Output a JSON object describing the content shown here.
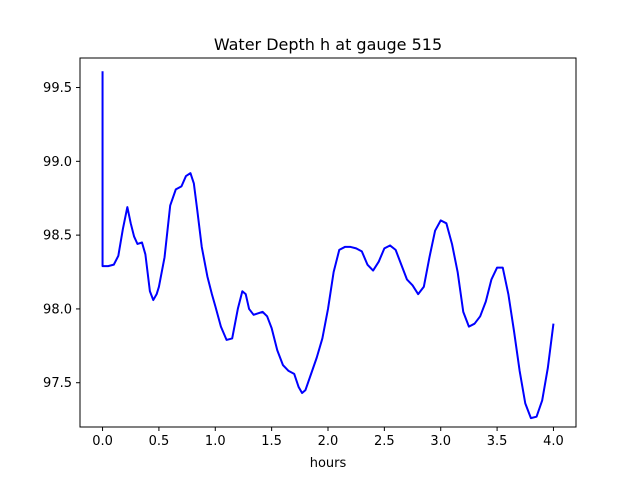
{
  "chart_data": {
    "type": "line",
    "title": "Water Depth h at gauge 515",
    "xlabel": "hours",
    "ylabel": "",
    "xlim": [
      -0.2,
      4.2
    ],
    "ylim": [
      97.2,
      99.7
    ],
    "grid": false,
    "x_ticks": [
      0.0,
      0.5,
      1.0,
      1.5,
      2.0,
      2.5,
      3.0,
      3.5,
      4.0
    ],
    "x_tick_labels": [
      "0.0",
      "0.5",
      "1.0",
      "1.5",
      "2.0",
      "2.5",
      "3.0",
      "3.5",
      "4.0"
    ],
    "y_ticks": [
      97.5,
      98.0,
      98.5,
      99.0,
      99.5
    ],
    "y_tick_labels": [
      "97.5",
      "98.0",
      "98.5",
      "99.0",
      "99.5"
    ],
    "series": [
      {
        "name": "",
        "color": "#0000ff",
        "x": [
          0.0,
          0.0,
          0.05,
          0.1,
          0.14,
          0.18,
          0.22,
          0.25,
          0.28,
          0.31,
          0.35,
          0.38,
          0.42,
          0.45,
          0.48,
          0.5,
          0.55,
          0.6,
          0.65,
          0.7,
          0.74,
          0.78,
          0.81,
          0.84,
          0.88,
          0.93,
          0.97,
          1.0,
          1.05,
          1.1,
          1.15,
          1.2,
          1.24,
          1.27,
          1.3,
          1.34,
          1.38,
          1.42,
          1.46,
          1.5,
          1.55,
          1.6,
          1.65,
          1.7,
          1.74,
          1.77,
          1.8,
          1.85,
          1.9,
          1.95,
          2.0,
          2.05,
          2.1,
          2.15,
          2.2,
          2.25,
          2.3,
          2.35,
          2.4,
          2.45,
          2.5,
          2.55,
          2.6,
          2.65,
          2.7,
          2.75,
          2.8,
          2.85,
          2.9,
          2.95,
          3.0,
          3.05,
          3.1,
          3.15,
          3.2,
          3.25,
          3.3,
          3.35,
          3.4,
          3.45,
          3.5,
          3.55,
          3.6,
          3.65,
          3.7,
          3.75,
          3.8,
          3.85,
          3.9,
          3.95,
          4.0
        ],
        "values": [
          99.61,
          98.29,
          98.29,
          98.3,
          98.36,
          98.54,
          98.69,
          98.58,
          98.49,
          98.44,
          98.45,
          98.37,
          98.12,
          98.06,
          98.1,
          98.15,
          98.35,
          98.7,
          98.81,
          98.83,
          98.9,
          98.92,
          98.85,
          98.67,
          98.42,
          98.22,
          98.1,
          98.02,
          97.88,
          97.79,
          97.8,
          98.0,
          98.12,
          98.1,
          98.0,
          97.96,
          97.97,
          97.98,
          97.95,
          97.87,
          97.72,
          97.62,
          97.58,
          97.56,
          97.47,
          97.43,
          97.45,
          97.56,
          97.67,
          97.8,
          98.0,
          98.25,
          98.4,
          98.42,
          98.42,
          98.41,
          98.39,
          98.3,
          98.26,
          98.32,
          98.41,
          98.43,
          98.4,
          98.3,
          98.2,
          98.16,
          98.1,
          98.15,
          98.35,
          98.53,
          98.6,
          98.58,
          98.44,
          98.25,
          97.98,
          97.88,
          97.9,
          97.95,
          98.05,
          98.2,
          98.28,
          98.28,
          98.1,
          97.85,
          97.58,
          97.36,
          97.26,
          97.27,
          97.38,
          97.6,
          97.9
        ]
      }
    ]
  }
}
